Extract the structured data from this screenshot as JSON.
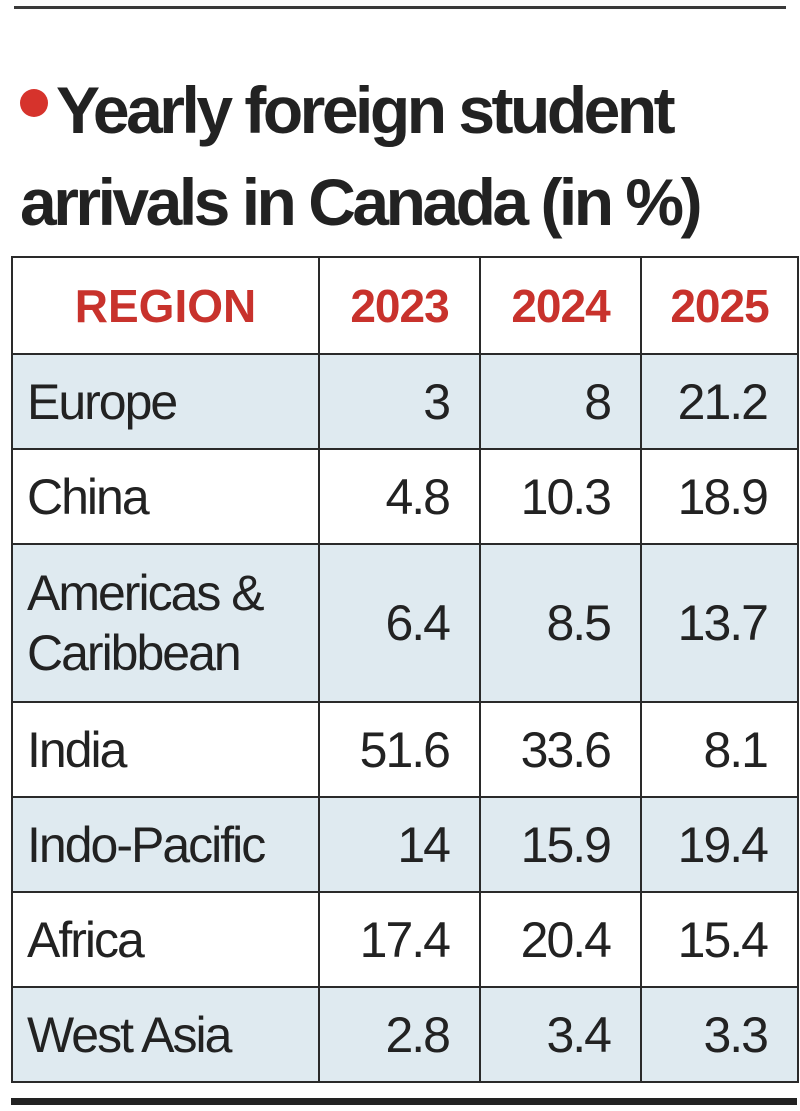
{
  "title": "Yearly foreign student arrivals in Canada (in %)",
  "chart_data": {
    "type": "table",
    "title": "Yearly foreign student arrivals in Canada (in %)",
    "columns": [
      "REGION",
      "2023",
      "2024",
      "2025"
    ],
    "rows": [
      {
        "region": "Europe",
        "values": [
          "3",
          "8",
          "21.2"
        ]
      },
      {
        "region": "China",
        "values": [
          "4.8",
          "10.3",
          "18.9"
        ]
      },
      {
        "region": "Americas & Caribbean",
        "values": [
          "6.4",
          "8.5",
          "13.7"
        ]
      },
      {
        "region": "India",
        "values": [
          "51.6",
          "33.6",
          "8.1"
        ]
      },
      {
        "region": "Indo-Pacific",
        "values": [
          "14",
          "15.9",
          "19.4"
        ]
      },
      {
        "region": "Africa",
        "values": [
          "17.4",
          "20.4",
          "15.4"
        ]
      },
      {
        "region": "West Asia",
        "values": [
          "2.8",
          "3.4",
          "3.3"
        ]
      }
    ]
  },
  "colors": {
    "accent": "#c8322c",
    "row_shade": "#dfeaf0",
    "text": "#222222"
  }
}
